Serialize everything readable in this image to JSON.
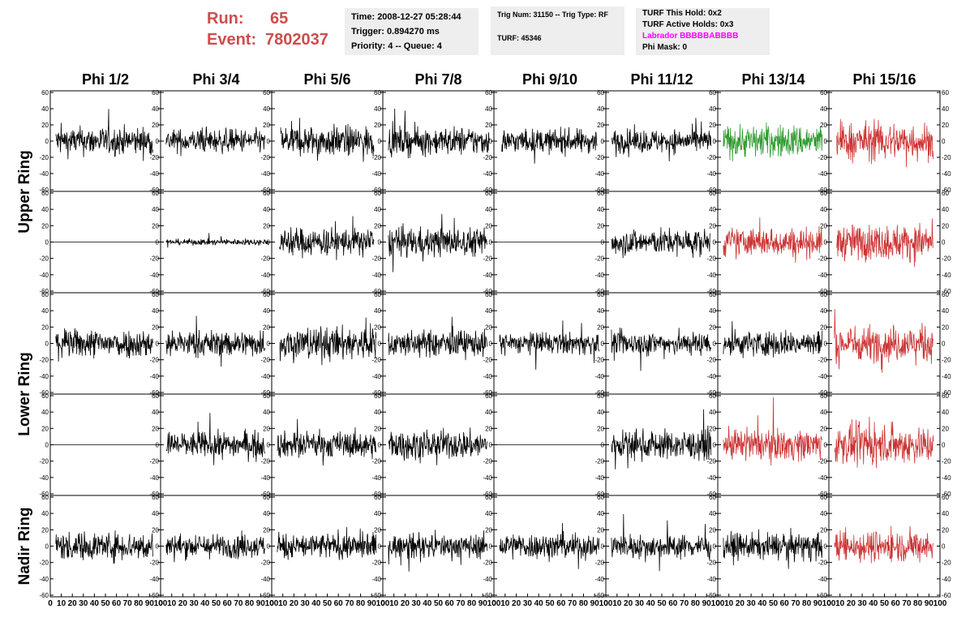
{
  "header": {
    "run_label": "Run:",
    "run_value": "65",
    "event_label": "Event:",
    "event_value": "7802037"
  },
  "info": {
    "time": "Time: 2008-12-27 05:28:44",
    "trigger": "Trigger: 0.894270 ms",
    "priority": "Priority: 4 -- Queue: 4",
    "trig_num": "Trig Num: 31150 -- Trig Type: RF",
    "turf": "TURF: 45346",
    "turf_hold": "TURF This Hold: 0x2",
    "turf_active": "TURF Active Holds: 0x3",
    "labrador": "Labrador BBBBBABBBB",
    "phi_mask": "Phi Mask: 0"
  },
  "colors": {
    "title_red": "#cc4d4d",
    "labrador_magenta": "#ff00ff",
    "trace_black": "#000000",
    "trace_green": "#2e9a2e",
    "trace_red": "#cc3333"
  },
  "chart_data": {
    "type": "line",
    "columns": [
      "Phi 1/2",
      "Phi 3/4",
      "Phi 5/6",
      "Phi 7/8",
      "Phi 9/10",
      "Phi 11/12",
      "Phi 13/14",
      "Phi 15/16"
    ],
    "ring_labels": [
      {
        "text": "Upper Ring",
        "rows": [
          0,
          1
        ]
      },
      {
        "text": "Lower Ring",
        "rows": [
          2,
          3
        ]
      },
      {
        "text": "Nadir Ring",
        "rows": [
          4,
          4
        ]
      }
    ],
    "ylim": [
      -60,
      60
    ],
    "y_ticks": [
      -60,
      -40,
      -20,
      0,
      20,
      40,
      60
    ],
    "y_tick_labels": [
      "-60",
      "-40",
      "-20",
      "0",
      "20",
      "40",
      "60"
    ],
    "xlim": [
      0,
      100
    ],
    "x_tick_labels": [
      "0",
      "10",
      "20",
      "30",
      "40",
      "50",
      "60",
      "70",
      "80",
      "90",
      "100"
    ],
    "waveform_samples": 256,
    "panels": [
      [
        {
          "amp": 12,
          "color": "black",
          "t0": 5,
          "t1": 93
        },
        {
          "amp": 10,
          "color": "black",
          "t0": 5,
          "t1": 94
        },
        {
          "amp": 13,
          "color": "black",
          "t0": 8,
          "t1": 92
        },
        {
          "amp": 12,
          "color": "black",
          "t0": 5,
          "t1": 96
        },
        {
          "amp": 10,
          "color": "black",
          "t0": 7,
          "t1": 92
        },
        {
          "amp": 10,
          "color": "black",
          "t0": 5,
          "t1": 94
        },
        {
          "amp": 14,
          "color": "green",
          "t0": 5,
          "t1": 94
        },
        {
          "amp": 16,
          "color": "red",
          "t0": 7,
          "t1": 94
        }
      ],
      [
        {
          "amp": 0,
          "color": "black",
          "t0": 0,
          "t1": 100
        },
        {
          "amp": 2.5,
          "color": "black",
          "t0": 5,
          "t1": 97
        },
        {
          "amp": 12,
          "color": "black",
          "t0": 7,
          "t1": 92
        },
        {
          "amp": 12,
          "color": "black",
          "t0": 5,
          "t1": 94
        },
        {
          "amp": 0,
          "color": "black",
          "t0": 0,
          "t1": 100
        },
        {
          "amp": 11,
          "color": "black",
          "t0": 5,
          "t1": 93
        },
        {
          "amp": 12,
          "color": "red",
          "t0": 5,
          "t1": 94
        },
        {
          "amp": 15,
          "color": "red",
          "t0": 7,
          "t1": 94
        }
      ],
      [
        {
          "amp": 12,
          "color": "black",
          "t0": 5,
          "t1": 93
        },
        {
          "amp": 11,
          "color": "black",
          "t0": 5,
          "t1": 94
        },
        {
          "amp": 14,
          "color": "black",
          "t0": 7,
          "t1": 94
        },
        {
          "amp": 11,
          "color": "black",
          "t0": 5,
          "t1": 94
        },
        {
          "amp": 9,
          "color": "black",
          "t0": 5,
          "t1": 94
        },
        {
          "amp": 10,
          "color": "black",
          "t0": 5,
          "t1": 94
        },
        {
          "amp": 11,
          "color": "black",
          "t0": 5,
          "t1": 94
        },
        {
          "amp": 15,
          "color": "red",
          "t0": 5,
          "t1": 94
        }
      ],
      [
        {
          "amp": 0,
          "color": "black",
          "t0": 0,
          "t1": 100
        },
        {
          "amp": 11,
          "color": "black",
          "t0": 5,
          "t1": 94
        },
        {
          "amp": 11,
          "color": "black",
          "t0": 5,
          "t1": 94
        },
        {
          "amp": 12,
          "color": "black",
          "t0": 5,
          "t1": 94
        },
        {
          "amp": 0,
          "color": "black",
          "t0": 0,
          "t1": 100
        },
        {
          "amp": 12,
          "color": "black",
          "t0": 5,
          "t1": 94
        },
        {
          "amp": 13,
          "color": "red",
          "t0": 5,
          "t1": 94
        },
        {
          "amp": 16,
          "color": "red",
          "t0": 5,
          "t1": 94
        }
      ],
      [
        {
          "amp": 12,
          "color": "black",
          "t0": 5,
          "t1": 93
        },
        {
          "amp": 10,
          "color": "black",
          "t0": 5,
          "t1": 94
        },
        {
          "amp": 11,
          "color": "black",
          "t0": 5,
          "t1": 94
        },
        {
          "amp": 10,
          "color": "black",
          "t0": 5,
          "t1": 94
        },
        {
          "amp": 11,
          "color": "black",
          "t0": 5,
          "t1": 94
        },
        {
          "amp": 10,
          "color": "black",
          "t0": 5,
          "t1": 94
        },
        {
          "amp": 11,
          "color": "black",
          "t0": 5,
          "t1": 94
        },
        {
          "amp": 13,
          "color": "red",
          "t0": 5,
          "t1": 94
        }
      ]
    ]
  }
}
